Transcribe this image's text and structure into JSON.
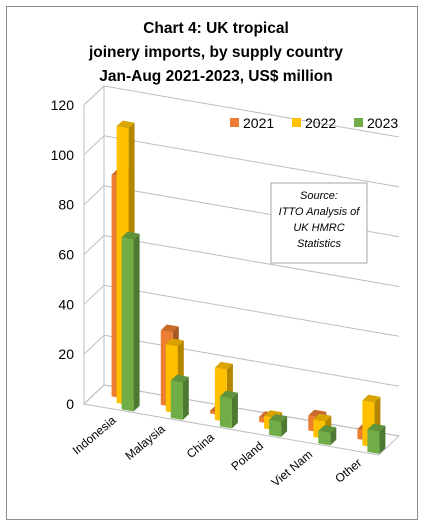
{
  "chart_data": {
    "type": "bar",
    "title_lines": [
      "Chart 4: UK tropical",
      "joinery imports, by supply country",
      "Jan-Aug 2021-2023, US$ million"
    ],
    "categories": [
      "Indonesia",
      "Malaysia",
      "China",
      "Poland",
      "Viet Nam",
      "Other"
    ],
    "series": [
      {
        "name": "2021",
        "color": "#ED7D31",
        "values": [
          89,
          30,
          1,
          2,
          6,
          4
        ]
      },
      {
        "name": "2022",
        "color": "#FFC000",
        "values": [
          111,
          27,
          21,
          5,
          7,
          18
        ]
      },
      {
        "name": "2023",
        "color": "#70AD47",
        "values": [
          69,
          15,
          12,
          6,
          5,
          9
        ]
      }
    ],
    "yticks": [
      "0",
      "20",
      "40",
      "60",
      "80",
      "100",
      "120"
    ],
    "ylim": [
      0,
      120
    ],
    "legend_position": "top-right",
    "annotation_lines": [
      "Source:",
      "ITTO Analysis of",
      "UK HMRC",
      "Statistics"
    ]
  }
}
